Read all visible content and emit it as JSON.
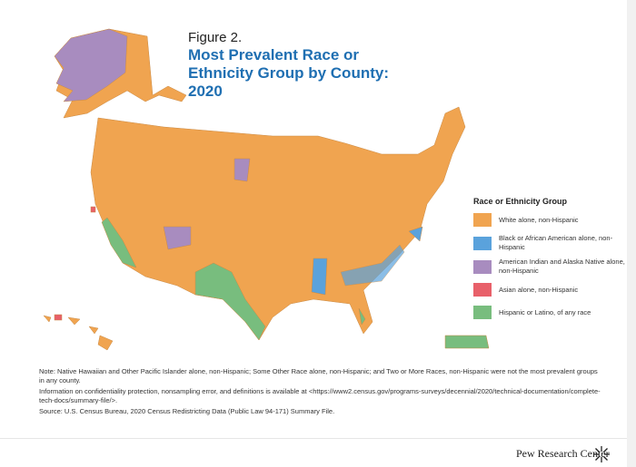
{
  "figure_label": "Figure 2.",
  "title": "Most Prevalent Race or Ethnicity Group by County: 2020",
  "legend": {
    "title": "Race or Ethnicity Group",
    "items": [
      {
        "label": "White alone, non-Hispanic",
        "color": "#f0a450"
      },
      {
        "label": "Black or African American alone, non-Hispanic",
        "color": "#5aa2dc"
      },
      {
        "label": "American Indian and Alaska Native alone, non-Hispanic",
        "color": "#a88cbf"
      },
      {
        "label": "Asian alone, non-Hispanic",
        "color": "#e8606a"
      },
      {
        "label": "Hispanic or Latino, of any race",
        "color": "#78bd7e"
      }
    ]
  },
  "notes": {
    "note": "Note: Native Hawaiian and Other Pacific Islander alone, non-Hispanic; Some Other Race alone, non-Hispanic; and Two or More Races, non-Hispanic were not the most prevalent groups in any county.",
    "info": "Information on confidentiality protection, nonsampling error, and definitions is available at <https://www2.census.gov/programs-surveys/decennial/2020/technical-documentation/complete-tech-docs/summary-file/>.",
    "source": "Source: U.S. Census Bureau, 2020 Census Redistricting Data (Public Law 94-171) Summary File."
  },
  "footer": {
    "brand": "Pew Research Center"
  }
}
